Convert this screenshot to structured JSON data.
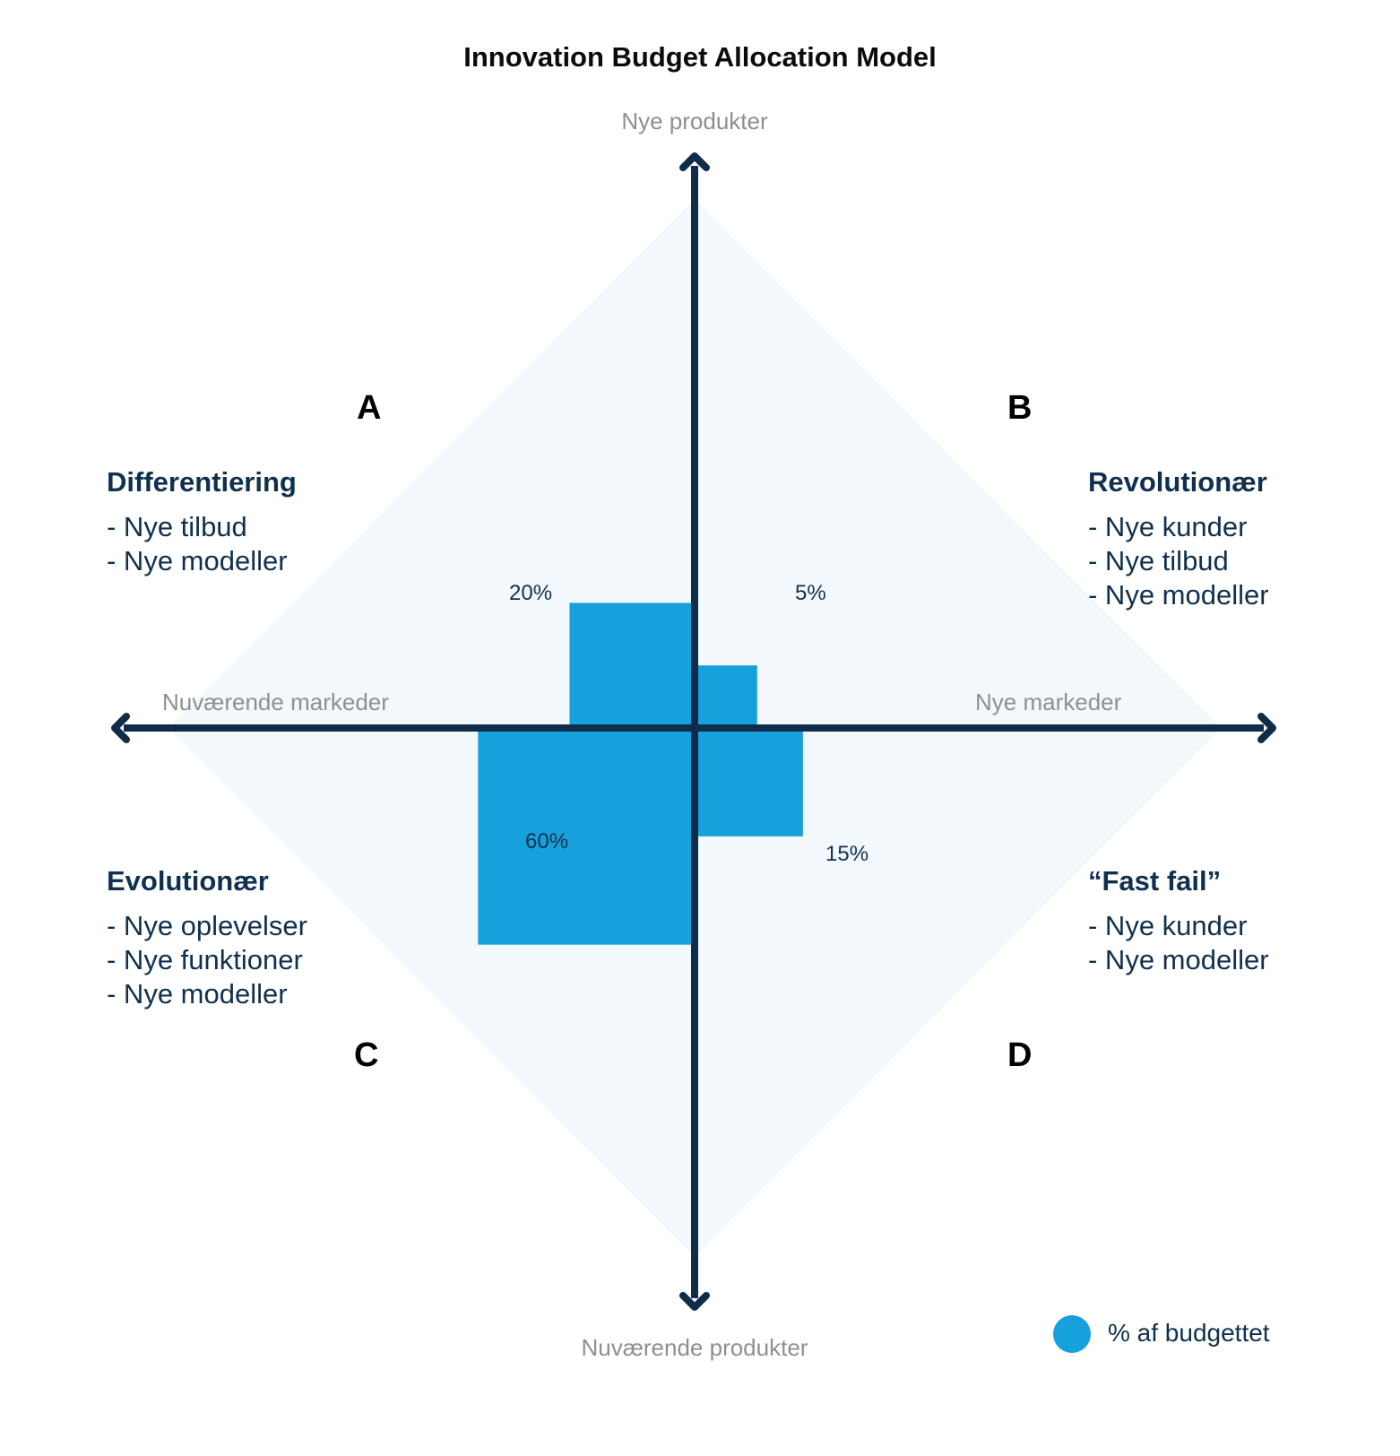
{
  "title": "Innovation Budget Allocation Model",
  "axes": {
    "top": "Nye produkter",
    "bottom": "Nuværende produkter",
    "left": "Nuværende markeder",
    "right": "Nye markeder"
  },
  "quadrants": {
    "A": {
      "letter": "A",
      "name": "Differentiering",
      "items": [
        "- Nye tilbud",
        "- Nye modeller"
      ],
      "percent": "20%",
      "share": 20
    },
    "B": {
      "letter": "B",
      "name": "Revolutionær",
      "items": [
        "- Nye kunder",
        "- Nye tilbud",
        "- Nye modeller"
      ],
      "percent": "5%",
      "share": 5
    },
    "C": {
      "letter": "C",
      "name": "Evolutionær",
      "items": [
        "- Nye oplevelser",
        "- Nye funktioner",
        "- Nye modeller"
      ],
      "percent": "60%",
      "share": 60
    },
    "D": {
      "letter": "D",
      "name": "“Fast fail”",
      "items": [
        "- Nye kunder",
        "- Nye modeller"
      ],
      "percent": "15%",
      "share": 15
    }
  },
  "legend": {
    "label": "% af budgettet"
  },
  "colors": {
    "diamond": "#f3f8fd",
    "axis": "#0f2d4a",
    "budget": "#16a0dc",
    "heading": "#10304f",
    "axis_label": "#8f8f8f"
  }
}
